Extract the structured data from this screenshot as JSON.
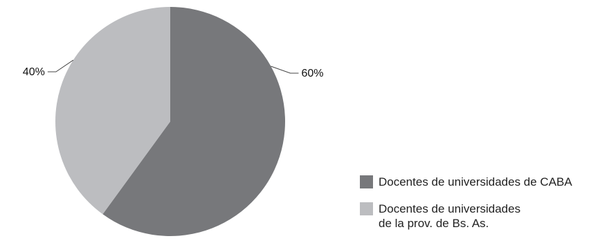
{
  "chart_data": {
    "type": "pie",
    "title": "",
    "slices": [
      {
        "label": "Docentes de universidades de CABA",
        "value": 60,
        "value_label": "60%",
        "color": "#77787b"
      },
      {
        "label": "Docentes de universidades\nde la prov. de Bs. As.",
        "value": 40,
        "value_label": "40%",
        "color": "#bcbdc0"
      }
    ],
    "start": "12 o'clock",
    "direction": "clockwise",
    "legend_position": "bottom-right",
    "callout_color": "#444444"
  }
}
